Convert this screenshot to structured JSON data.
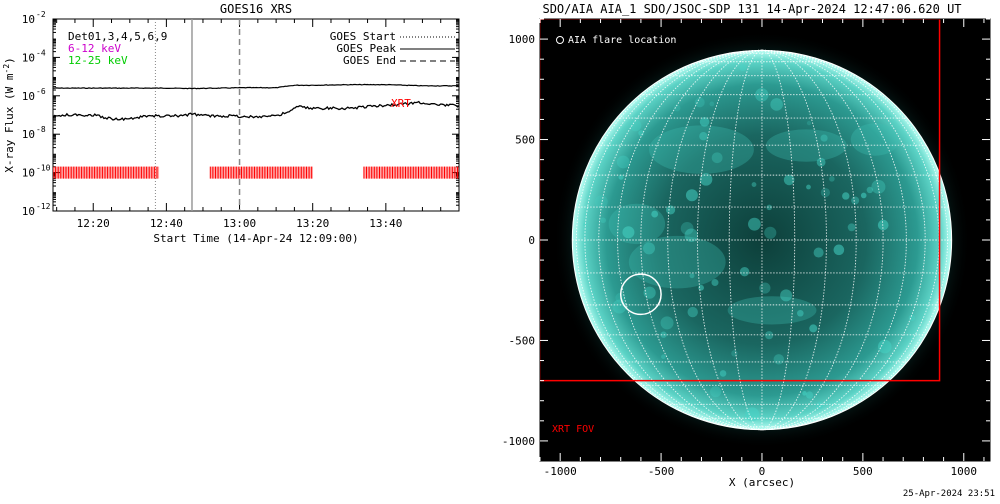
{
  "chart_data": [
    {
      "type": "line",
      "title": "GOES16 XRS",
      "xlabel": "Start Time (14-Apr-24 12:09:00)",
      "ylabel": "X-ray Flux (W m",
      "ylabel_sup": "-2",
      "ylabel_close": ")",
      "y_scale": "log",
      "xlim": [
        "12:09",
        "14:00"
      ],
      "ylim": [
        -12,
        -2
      ],
      "x_ticks": [
        "12:20",
        "12:40",
        "13:00",
        "13:20",
        "13:40"
      ],
      "y_ticks": [
        {
          "exp": -2,
          "label": "-2"
        },
        {
          "exp": -4,
          "label": "-4"
        },
        {
          "exp": -6,
          "label": "-6"
        },
        {
          "exp": -8,
          "label": "-8"
        },
        {
          "exp": -10,
          "label": "-10"
        },
        {
          "exp": -12,
          "label": "-12"
        }
      ],
      "detector_label": "Det01,3,4,5,6,9",
      "band_labels": [
        {
          "text": "6-12 keV",
          "color": "#cc00cc"
        },
        {
          "text": "12-25 keV",
          "color": "#00cc00"
        }
      ],
      "legend": {
        "placement": "top-right",
        "entries": [
          {
            "label": "GOES Start",
            "style": "dotted"
          },
          {
            "label": "GOES Peak",
            "style": "solid"
          },
          {
            "label": "GOES End",
            "style": "dashed"
          }
        ]
      },
      "markers": [
        {
          "name": "GOES Start",
          "time": "12:37",
          "style": "dotted"
        },
        {
          "name": "GOES Peak",
          "time": "12:47",
          "style": "solid"
        },
        {
          "name": "GOES End",
          "time": "13:00",
          "style": "dashed"
        }
      ],
      "xrt_label": "XRT",
      "xrt_color": "#ff0000",
      "series": [
        {
          "key": "long",
          "color": "#000000",
          "x": [
            "12:09",
            "12:20",
            "12:30",
            "12:40",
            "12:47",
            "12:55",
            "13:00",
            "13:10",
            "13:15",
            "13:20",
            "13:30",
            "13:40",
            "13:50",
            "14:00"
          ],
          "values": [
            -5.6,
            -5.6,
            -5.6,
            -5.6,
            -5.62,
            -5.6,
            -5.58,
            -5.58,
            -5.45,
            -5.45,
            -5.42,
            -5.42,
            -5.48,
            -5.48
          ]
        },
        {
          "key": "short",
          "color": "#000000",
          "x": [
            "12:09",
            "12:12",
            "12:20",
            "12:25",
            "12:30",
            "12:35",
            "12:40",
            "12:44",
            "12:47",
            "12:52",
            "12:58",
            "13:03",
            "13:08",
            "13:11",
            "13:14",
            "13:16",
            "13:19",
            "13:24",
            "13:30",
            "13:35",
            "13:40",
            "13:45",
            "13:49",
            "13:52",
            "13:55",
            "14:00"
          ],
          "values": [
            -7.1,
            -7.0,
            -7.0,
            -7.2,
            -7.2,
            -7.05,
            -7.05,
            -7.05,
            -6.95,
            -7.05,
            -7.05,
            -7.1,
            -7.05,
            -7.0,
            -6.78,
            -6.55,
            -6.65,
            -6.65,
            -6.65,
            -6.55,
            -6.5,
            -6.42,
            -6.35,
            -6.4,
            -6.48,
            -6.52
          ]
        }
      ],
      "xrt_coverage_level": -10,
      "xrt_coverage": [
        {
          "start": "12:09",
          "end": "12:38"
        },
        {
          "start": "12:52",
          "end": "13:20"
        },
        {
          "start": "13:34",
          "end": "14:00"
        }
      ]
    },
    {
      "type": "scatter",
      "title": "SDO/AIA AIA_1 SDO/JSOC-SDP 131 14-Apr-2024 12:47:06.620 UT",
      "xlabel": "X (arcsec)",
      "ylabel": "",
      "xlim": [
        -1100,
        1130
      ],
      "ylim": [
        -1100,
        1100
      ],
      "x_ticks": [
        -1000,
        -500,
        0,
        500,
        1000
      ],
      "y_ticks": [
        -1000,
        -500,
        0,
        500,
        1000
      ],
      "solar_radius_arcsec": 940,
      "grid": "heliographic 10-degree lines",
      "flare_legend": "AIA flare location",
      "flare_location": {
        "x": -600,
        "y": -270
      },
      "xrt_fov_label": "XRT FOV",
      "xrt_fov": {
        "x0": -1100,
        "x1": 880,
        "y0": -700,
        "y1": 1100
      },
      "colors": {
        "disk": "#2fa8a0",
        "fov": "#ff0000",
        "background": "#000000"
      }
    }
  ],
  "footer": {
    "timestamp": "25-Apr-2024 23:51"
  }
}
